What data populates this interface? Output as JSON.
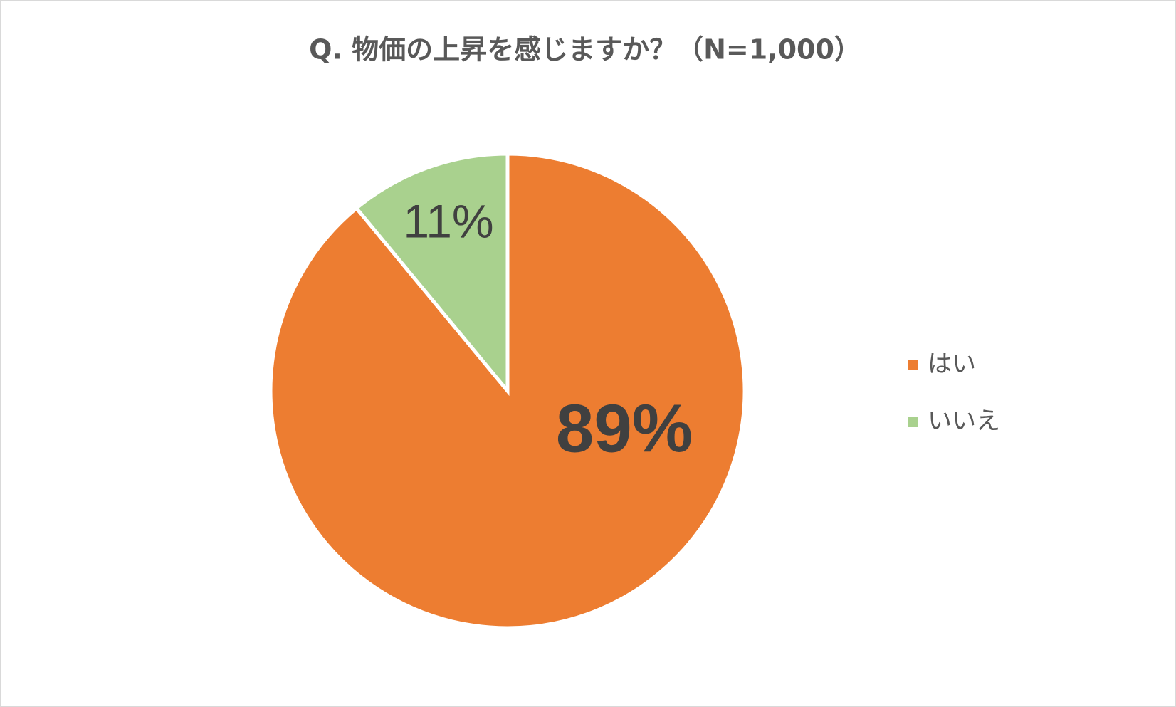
{
  "chart_data": {
    "type": "pie",
    "title": "Q. 物価の上昇を感じますか？（N=1,000）",
    "categories": [
      "はい",
      "いいえ"
    ],
    "values": [
      89,
      11
    ],
    "value_labels": [
      "89%",
      "11%"
    ],
    "colors": [
      "#ed7d31",
      "#a9d18e"
    ],
    "legend": "right"
  }
}
